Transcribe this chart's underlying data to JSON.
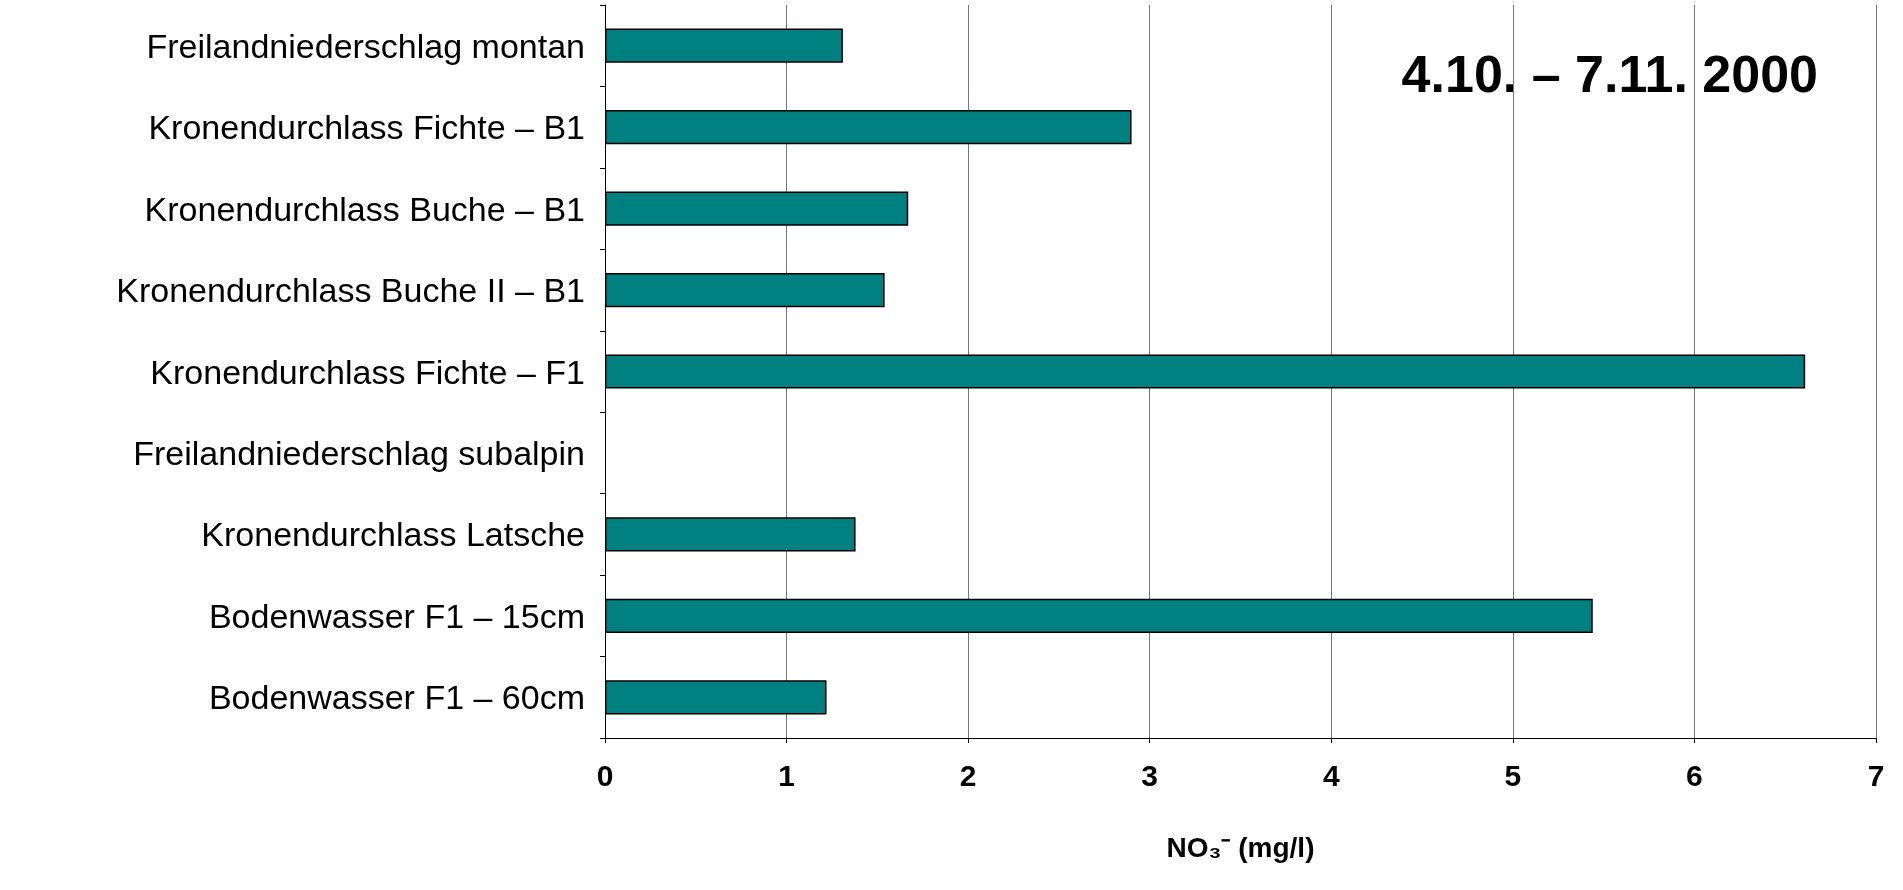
{
  "chart_data": {
    "type": "bar",
    "orientation": "horizontal",
    "xlabel": "NO₃⁻ (mg/l)",
    "annotations": [
      "4.10. – 7.11. 2000"
    ],
    "categories": [
      "Freilandniederschlag montan",
      "Kronendurchlass Fichte – B1",
      "Kronendurchlass Buche – B1",
      "Kronendurchlass Buche II – B1",
      "Kronendurchlass Fichte – F1",
      "Freilandniederschlag subalpin",
      "Kronendurchlass Latsche",
      "Bodenwasser F1 – 15cm",
      "Bodenwasser F1 – 60cm"
    ],
    "values": [
      1.31,
      2.9,
      1.67,
      1.54,
      6.61,
      null,
      1.38,
      5.44,
      1.22
    ],
    "color": "#008080",
    "xlim": [
      0,
      7
    ],
    "xticks": [
      0,
      1,
      2,
      3,
      4,
      5,
      6,
      7
    ],
    "grid": "x"
  }
}
